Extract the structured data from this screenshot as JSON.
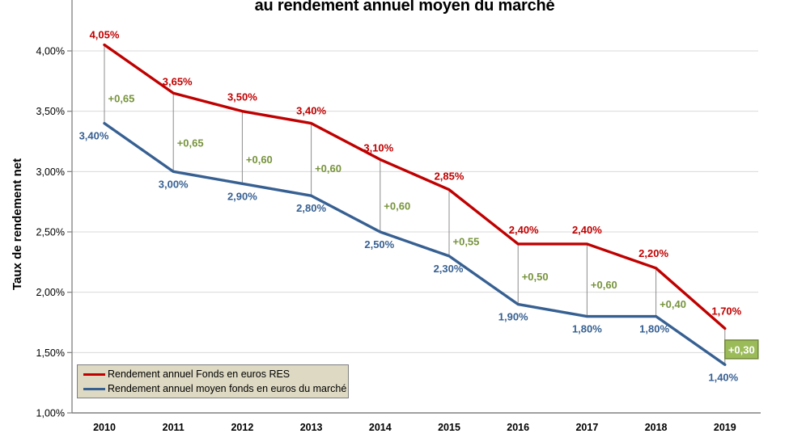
{
  "title": "au rendement annuel moyen du marché",
  "y_axis_title": "Taux de rendement net",
  "legend": {
    "items": [
      {
        "label": "Rendement annuel Fonds en euros RES",
        "color": "#C00000"
      },
      {
        "label": "Rendement annuel moyen fonds en euros du marché",
        "color": "#376092"
      }
    ]
  },
  "colors": {
    "red_series": "#C00000",
    "blue_series": "#376092",
    "diff_green": "#77933C",
    "diff_box_fill": "#9BBB59",
    "diff_box_border": "#71893B",
    "diff_box_text": "#FFFFFF",
    "gridline": "#D9D9D9",
    "axis": "#808080",
    "connector": "#8C8C8C",
    "tick_label": "#000000"
  },
  "chart_data": {
    "type": "line",
    "categories": [
      "2010",
      "2011",
      "2012",
      "2013",
      "2014",
      "2015",
      "2016",
      "2017",
      "2018",
      "2019"
    ],
    "series": [
      {
        "name": "Rendement annuel Fonds en euros RES",
        "color": "#C00000",
        "values": [
          4.05,
          3.65,
          3.5,
          3.4,
          3.1,
          2.85,
          2.4,
          2.4,
          2.2,
          1.7
        ],
        "point_labels": [
          "4,05%",
          "3,65%",
          "3,50%",
          "3,40%",
          "3,10%",
          "2,85%",
          "2,40%",
          "2,40%",
          "2,20%",
          "1,70%"
        ]
      },
      {
        "name": "Rendement annuel moyen fonds en euros du marché",
        "color": "#376092",
        "values": [
          3.4,
          3.0,
          2.9,
          2.8,
          2.5,
          2.3,
          1.9,
          1.8,
          1.8,
          1.4
        ],
        "point_labels": [
          "3,40%",
          "3,00%",
          "2,90%",
          "2,80%",
          "2,50%",
          "2,30%",
          "1,90%",
          "1,80%",
          "1,80%",
          "1,40%"
        ]
      }
    ],
    "diff_labels": [
      "+0,65",
      "+0,65",
      "+0,60",
      "+0,60",
      "+0,60",
      "+0,55",
      "+0,50",
      "+0,60",
      "+0,40",
      "+0,30"
    ],
    "diff_last_boxed": true,
    "title": "au rendement annuel moyen du marché",
    "xlabel": "",
    "ylabel": "Taux de rendement net",
    "ylim": [
      1.0,
      4.0
    ],
    "y_ticks": [
      {
        "value": 4.0,
        "label": "4,00%"
      },
      {
        "value": 3.5,
        "label": "3,50%"
      },
      {
        "value": 3.0,
        "label": "3,00%"
      },
      {
        "value": 2.5,
        "label": "2,50%"
      },
      {
        "value": 2.0,
        "label": "2,00%"
      },
      {
        "value": 1.5,
        "label": "1,50%"
      },
      {
        "value": 1.0,
        "label": "1,00%"
      }
    ],
    "grid": true,
    "legend_position": "bottom-left"
  }
}
